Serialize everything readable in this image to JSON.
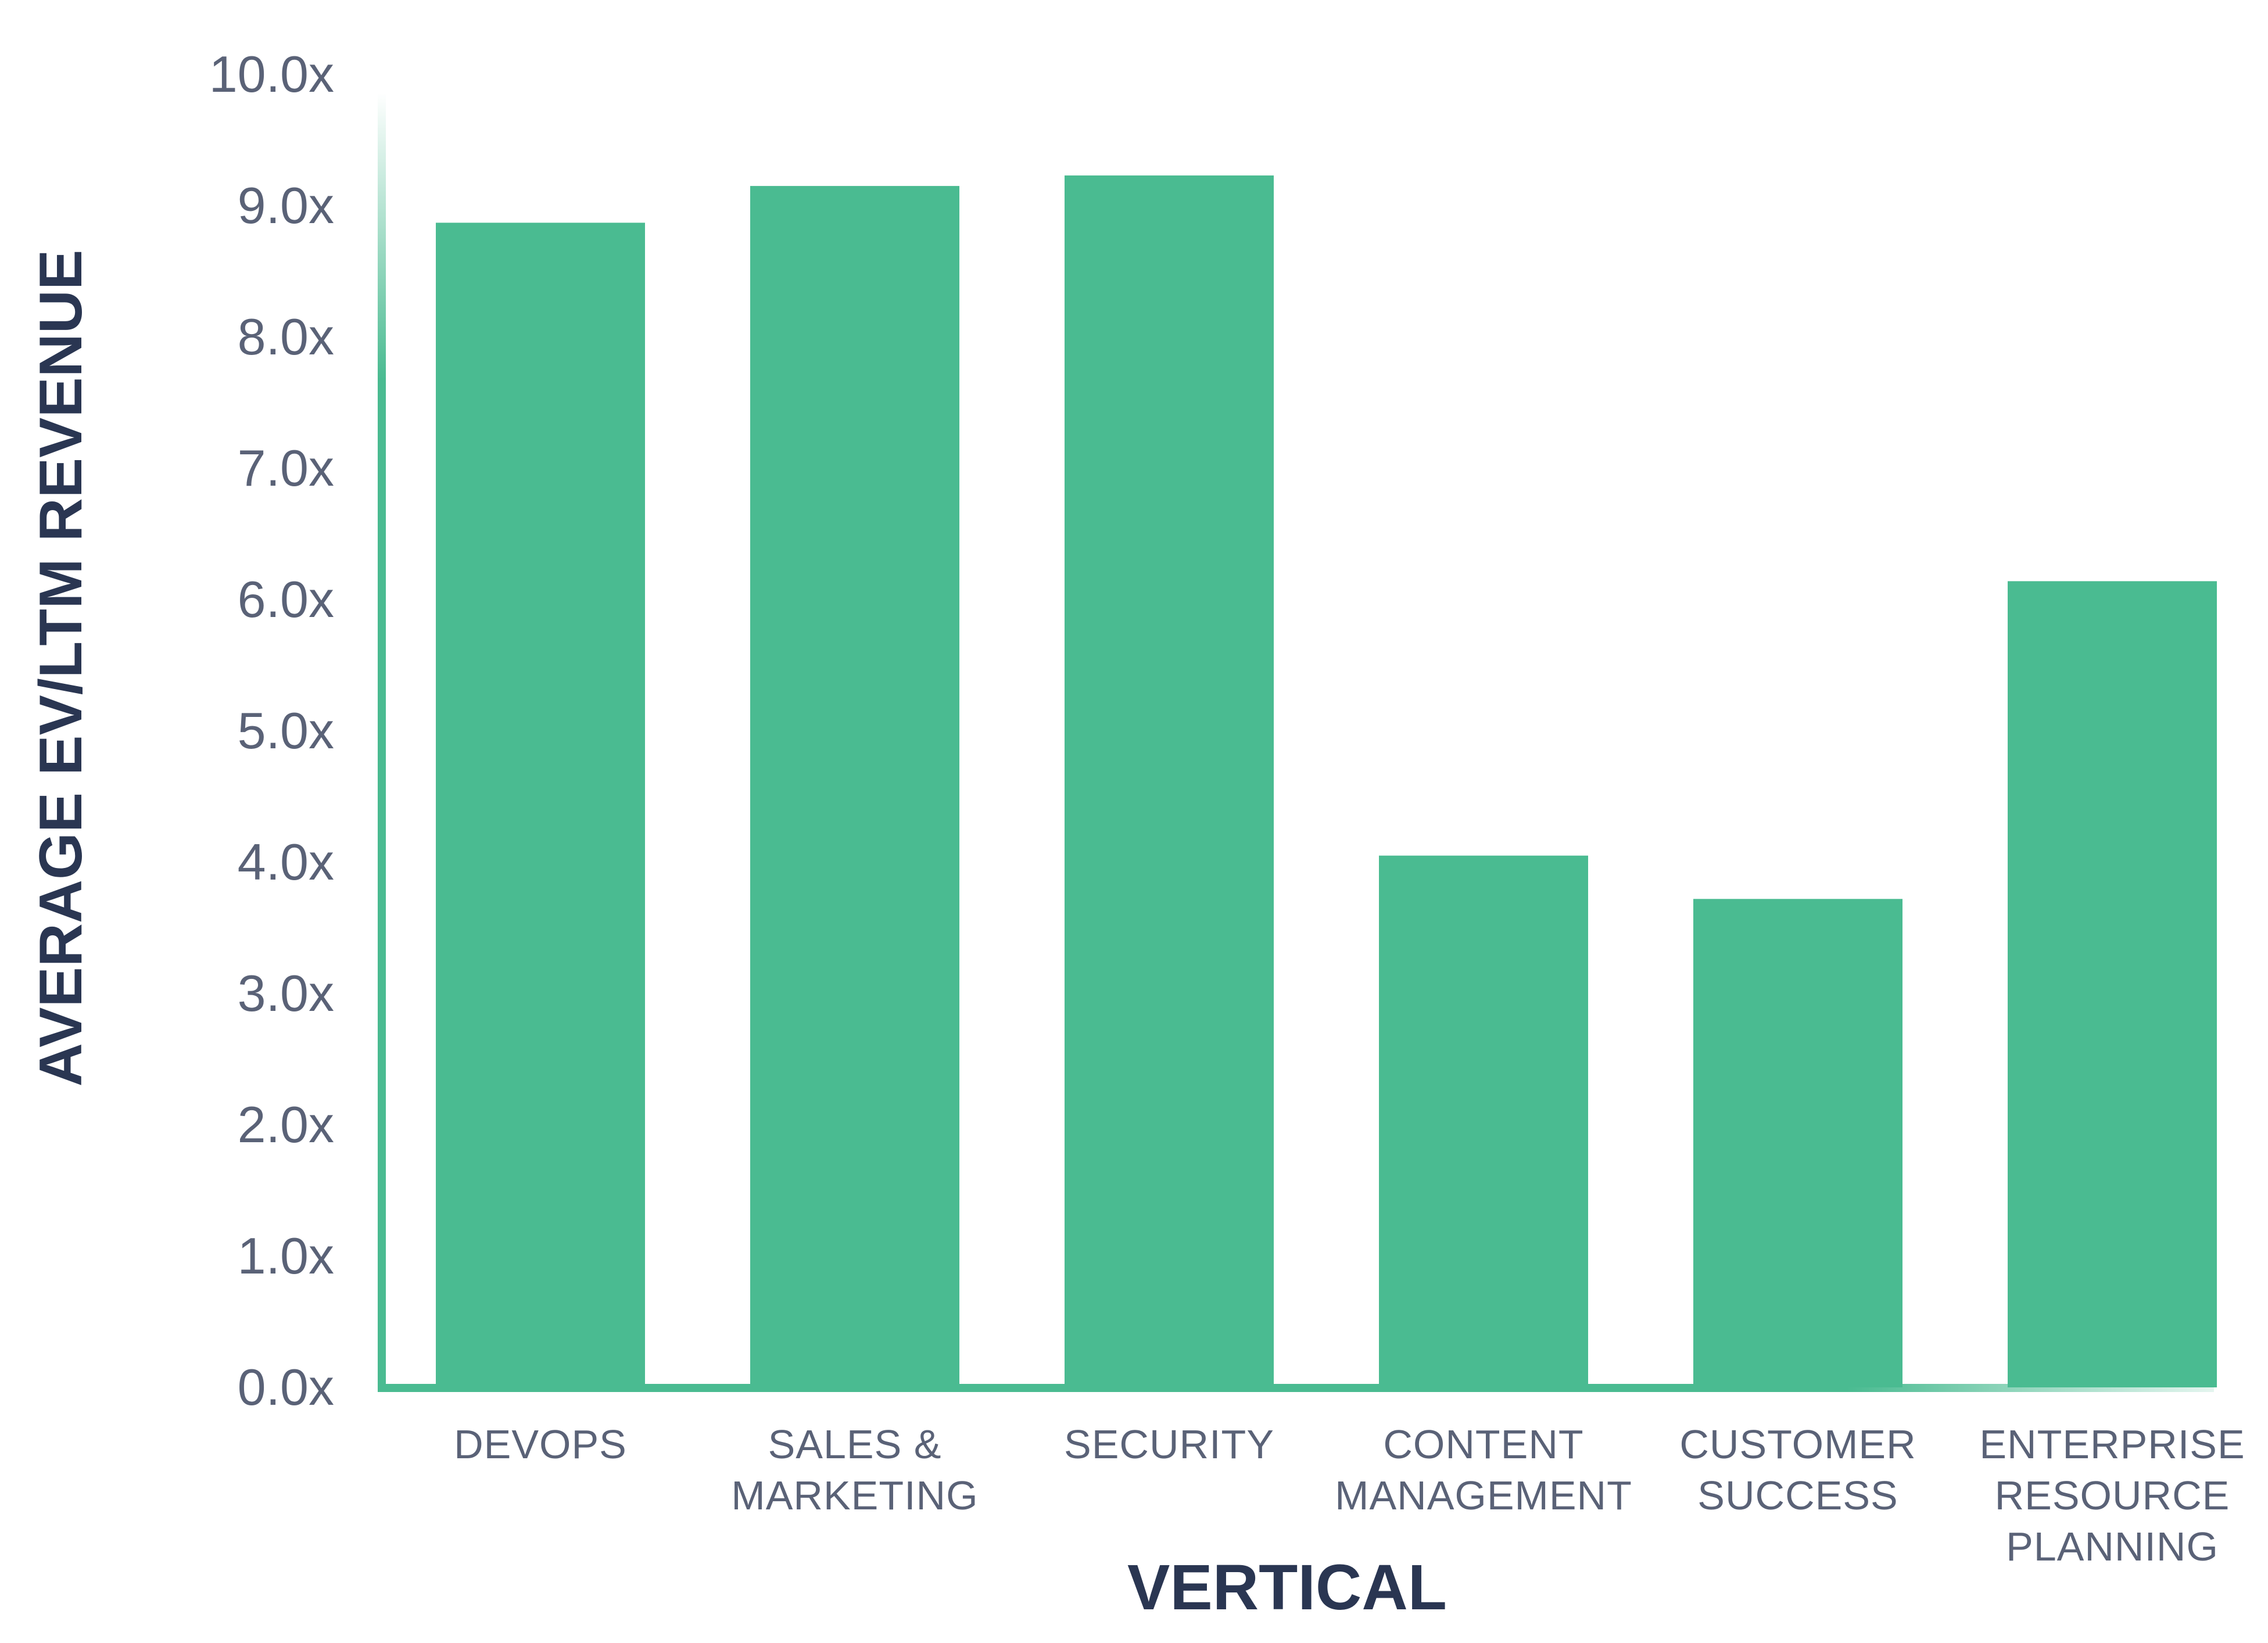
{
  "chart_data": {
    "type": "bar",
    "title": "",
    "xlabel": "VERTICAL",
    "ylabel": "AVERAGE EV/LTM REVENUE",
    "categories": [
      [
        "DEVOPS"
      ],
      [
        "SALES &",
        "MARKETING"
      ],
      [
        "SECURITY"
      ],
      [
        "CONTENT",
        "MANAGEMENT"
      ],
      [
        "CUSTOMER",
        "SUCCESS"
      ],
      [
        "ENTERPRISE",
        "RESOURCE",
        "PLANNING"
      ]
    ],
    "values": [
      8.87,
      9.15,
      9.23,
      4.05,
      3.72,
      6.14
    ],
    "yticks": [
      "0.0x",
      "1.0x",
      "2.0x",
      "3.0x",
      "4.0x",
      "5.0x",
      "6.0x",
      "7.0x",
      "8.0x",
      "9.0x",
      "10.0x"
    ],
    "ylim": [
      0,
      10
    ],
    "grid": false,
    "colors": {
      "bar": "#4abb91",
      "axis": "#4abb91",
      "tick_text": "#5a6277",
      "title_text": "#2a3652"
    }
  }
}
